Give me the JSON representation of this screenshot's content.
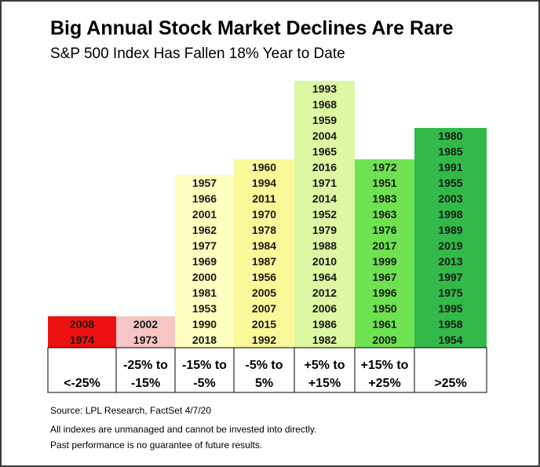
{
  "title": "Big Annual Stock Market Declines Are Rare",
  "subtitle": "S&P 500 Index Has Fallen 18% Year to Date",
  "footer": {
    "source": "Source: LPL Research, FactSet  4/7/20",
    "note1": "All indexes are unmanaged and cannot be invested into directly.",
    "note2": "Past performance is no guarantee of future results."
  },
  "chart_data": {
    "type": "bar",
    "title": "Big Annual Stock Market Declines Are Rare",
    "subtitle": "S&P 500 Index Has Fallen 18% Year to Date",
    "xlabel": "",
    "ylabel": "",
    "categories": [
      [
        "<-25%"
      ],
      [
        "-25% to",
        "-15%"
      ],
      [
        "-15% to",
        "-5%"
      ],
      [
        "-5% to",
        "5%"
      ],
      [
        "+5% to",
        "+15%"
      ],
      [
        "+15% to",
        "+25%"
      ],
      [
        ">25%"
      ]
    ],
    "colors": [
      "#ee1111",
      "#f6c5c5",
      "#ffffc0",
      "#f9f99a",
      "#dcf8a2",
      "#6ee250",
      "#33b84a"
    ],
    "values": [
      2,
      2,
      11,
      12,
      17,
      12,
      14
    ],
    "years": [
      [
        "2008",
        "1974"
      ],
      [
        "2002",
        "1973"
      ],
      [
        "1957",
        "1966",
        "2001",
        "1962",
        "1977",
        "1969",
        "2000",
        "1981",
        "1953",
        "1990",
        "2018"
      ],
      [
        "1960",
        "1994",
        "2011",
        "1970",
        "1978",
        "1984",
        "1987",
        "1956",
        "2005",
        "2007",
        "2015",
        "1992"
      ],
      [
        "1993",
        "1968",
        "1959",
        "2004",
        "1965",
        "2016",
        "1971",
        "2014",
        "1952",
        "1979",
        "1988",
        "2010",
        "1964",
        "2012",
        "2006",
        "1986",
        "1982"
      ],
      [
        "1972",
        "1951",
        "1983",
        "1963",
        "1976",
        "2017",
        "1999",
        "1967",
        "1996",
        "1950",
        "1961",
        "2009"
      ],
      [
        "1980",
        "1985",
        "1991",
        "1955",
        "2003",
        "1998",
        "1989",
        "2019",
        "2013",
        "1997",
        "1975",
        "1995",
        "1958",
        "1954"
      ]
    ]
  }
}
